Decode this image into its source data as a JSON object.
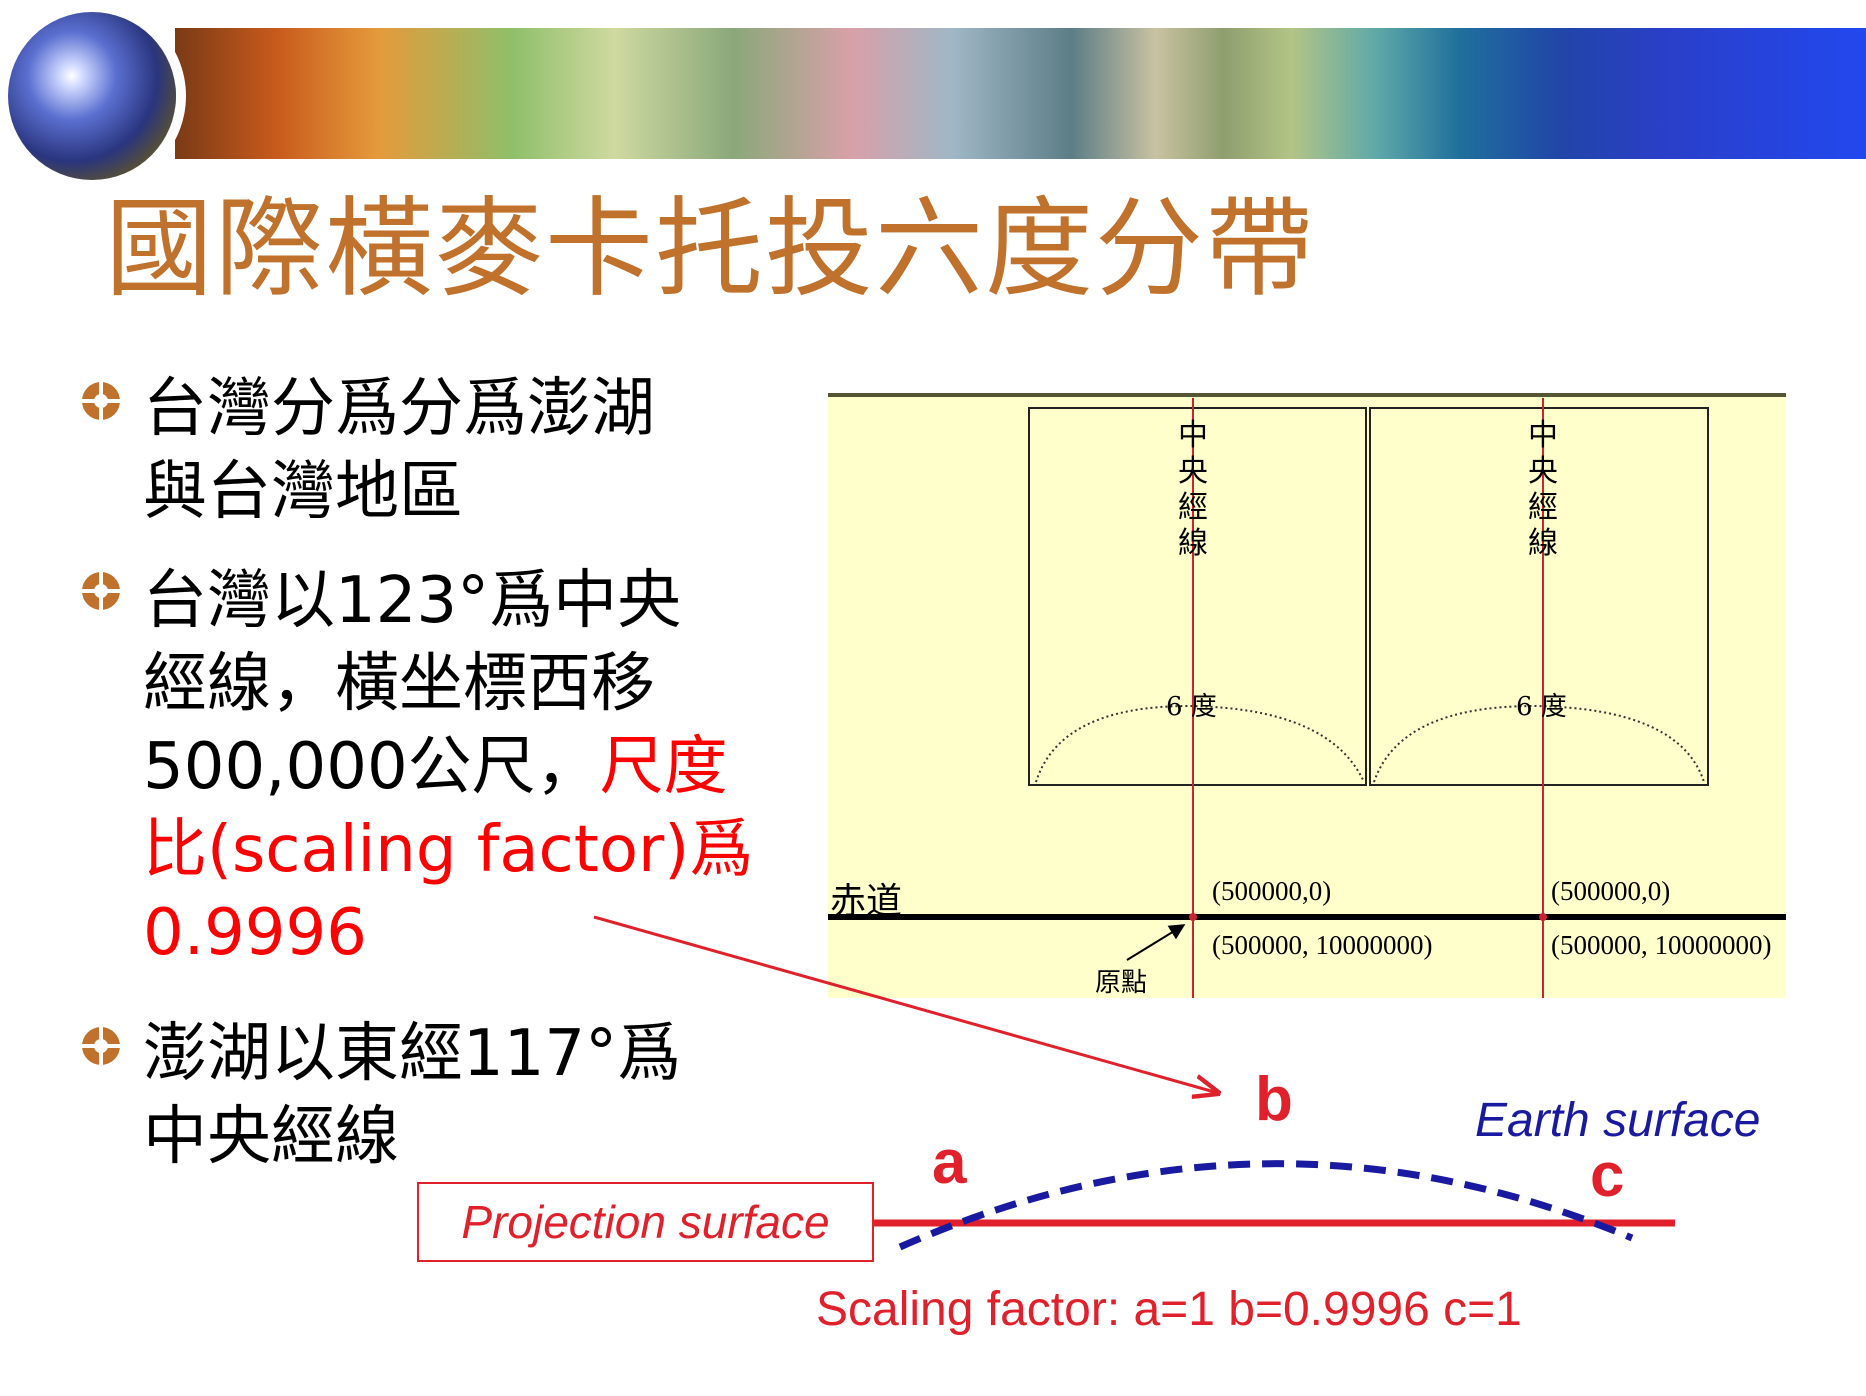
{
  "title": "國際橫麥卡托投六度分帶",
  "bullets": [
    {
      "lines": [
        "台灣分爲分爲澎湖",
        "與台灣地區"
      ]
    },
    {
      "lines_black": [
        "台灣以123°爲中央",
        "經線，橫坐標西移",
        "500,000公尺，"
      ],
      "lines_red": [
        "尺度",
        "比(scaling factor)爲",
        "0.9996"
      ]
    },
    {
      "lines": [
        "澎湖以東經117°爲",
        "中央經線"
      ]
    }
  ],
  "diagram": {
    "central_meridian_label": "中央經線",
    "six_degree_label": "6 度",
    "equator_label": "赤道",
    "origin_label": "原點",
    "coord_upper": "(500000,0)",
    "coord_lower": "(500000, 10000000)",
    "panel_color": "#ffffcc",
    "meridian_color": "#cc2233"
  },
  "scaling": {
    "label_a": "a",
    "label_b": "b",
    "label_c": "c",
    "earth_surface": "Earth surface",
    "projection_surface": "Projection surface",
    "scaling_factor_text": "Scaling factor: a=1  b=0.9996  c=1",
    "earth_color": "#1a1aa0",
    "projection_color": "#e0202a"
  }
}
